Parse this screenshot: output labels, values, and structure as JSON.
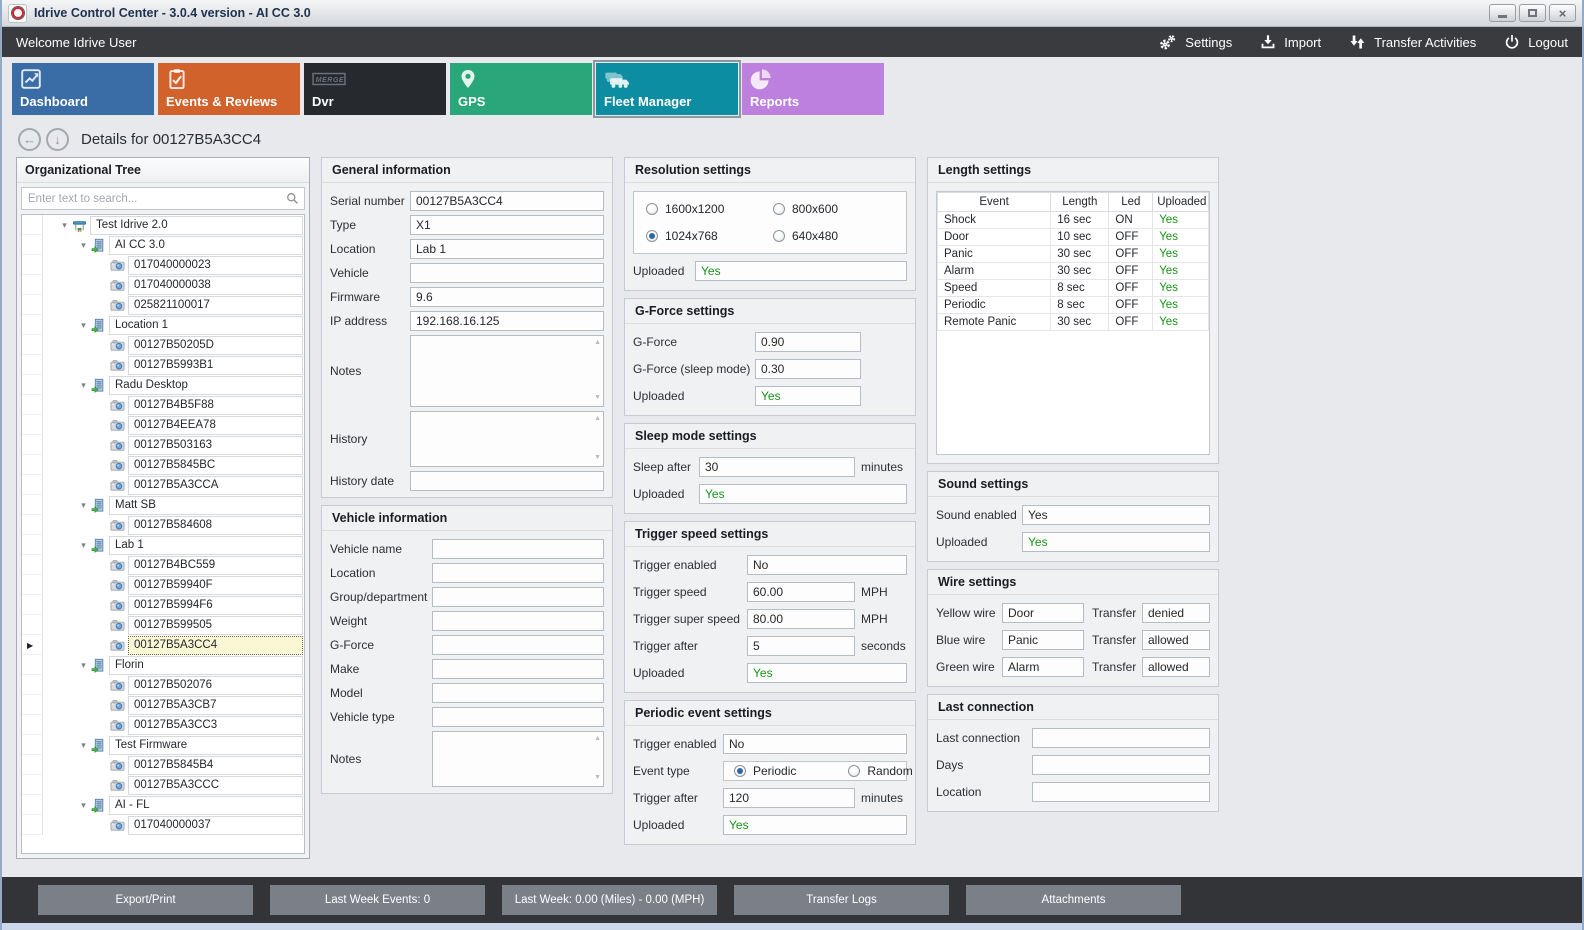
{
  "window": {
    "title": "Idrive Control Center - 3.0.4 version - AI CC 3.0"
  },
  "toolbar": {
    "welcome": "Welcome Idrive User",
    "actions": [
      {
        "label": "Settings",
        "icon": "gears"
      },
      {
        "label": "Import",
        "icon": "import"
      },
      {
        "label": "Transfer Activities",
        "icon": "transfer"
      },
      {
        "label": "Logout",
        "icon": "power"
      }
    ]
  },
  "tabs": [
    {
      "label": "Dashboard",
      "icon": "chart",
      "color": "#3a6ca6",
      "selected": false
    },
    {
      "label": "Events & Reviews",
      "icon": "clipboard",
      "color": "#d2622c",
      "selected": false
    },
    {
      "label": "Dvr",
      "icon": "merge",
      "color": "#26292e",
      "selected": false
    },
    {
      "label": "GPS",
      "icon": "pin",
      "color": "#2aa77a",
      "selected": false
    },
    {
      "label": "Fleet Manager",
      "icon": "fleet",
      "color": "#0d8da1",
      "selected": true
    },
    {
      "label": "Reports",
      "icon": "pie",
      "color": "#bd80de",
      "selected": false
    }
  ],
  "details_header": {
    "title": "Details for 00127B5A3CC4",
    "back_icon": "←",
    "down_icon": "↓"
  },
  "sidebar": {
    "title": "Organizational Tree",
    "search_placeholder": "Enter text to search...",
    "tree": [
      {
        "label": "Test Idrive 2.0",
        "icon": "site",
        "level": 0,
        "expanded": true
      },
      {
        "label": "AI CC 3.0",
        "icon": "org",
        "level": 1,
        "expanded": true
      },
      {
        "label": "017040000023",
        "icon": "device",
        "level": 2,
        "leaf": true
      },
      {
        "label": "017040000038",
        "icon": "device",
        "level": 2,
        "leaf": true
      },
      {
        "label": "025821100017",
        "icon": "device",
        "level": 2,
        "leaf": true
      },
      {
        "label": "Location 1",
        "icon": "org",
        "level": 1,
        "expanded": true
      },
      {
        "label": "00127B50205D",
        "icon": "device",
        "level": 2,
        "leaf": true
      },
      {
        "label": "00127B5993B1",
        "icon": "device",
        "level": 2,
        "leaf": true
      },
      {
        "label": "Radu Desktop",
        "icon": "org",
        "level": 1,
        "expanded": true
      },
      {
        "label": "00127B4B5F88",
        "icon": "device",
        "level": 2,
        "leaf": true
      },
      {
        "label": "00127B4EEA78",
        "icon": "device",
        "level": 2,
        "leaf": true
      },
      {
        "label": "00127B503163",
        "icon": "device",
        "level": 2,
        "leaf": true
      },
      {
        "label": "00127B5845BC",
        "icon": "device",
        "level": 2,
        "leaf": true
      },
      {
        "label": "00127B5A3CCA",
        "icon": "device",
        "level": 2,
        "leaf": true
      },
      {
        "label": "Matt SB",
        "icon": "org",
        "level": 1,
        "expanded": true
      },
      {
        "label": "00127B584608",
        "icon": "device",
        "level": 2,
        "leaf": true
      },
      {
        "label": "Lab 1",
        "icon": "org",
        "level": 1,
        "expanded": true
      },
      {
        "label": "00127B4BC559",
        "icon": "device",
        "level": 2,
        "leaf": true
      },
      {
        "label": "00127B59940F",
        "icon": "device",
        "level": 2,
        "leaf": true
      },
      {
        "label": "00127B5994F6",
        "icon": "device",
        "level": 2,
        "leaf": true
      },
      {
        "label": "00127B599505",
        "icon": "device",
        "level": 2,
        "leaf": true
      },
      {
        "label": "00127B5A3CC4",
        "icon": "device",
        "level": 2,
        "leaf": true,
        "selected": true
      },
      {
        "label": "Florin",
        "icon": "org",
        "level": 1,
        "expanded": true
      },
      {
        "label": "00127B502076",
        "icon": "device",
        "level": 2,
        "leaf": true
      },
      {
        "label": "00127B5A3CB7",
        "icon": "device",
        "level": 2,
        "leaf": true
      },
      {
        "label": "00127B5A3CC3",
        "icon": "device",
        "level": 2,
        "leaf": true
      },
      {
        "label": "Test Firmware",
        "icon": "org",
        "level": 1,
        "expanded": true
      },
      {
        "label": "00127B5845B4",
        "icon": "device",
        "level": 2,
        "leaf": true
      },
      {
        "label": "00127B5A3CCC",
        "icon": "device",
        "level": 2,
        "leaf": true
      },
      {
        "label": "AI - FL",
        "icon": "org",
        "level": 1,
        "expanded": true
      },
      {
        "label": "017040000037",
        "icon": "device",
        "level": 2,
        "leaf": true
      }
    ]
  },
  "groups": {
    "general": {
      "title": "General information",
      "fields": {
        "serial": {
          "label": "Serial number",
          "value": "00127B5A3CC4"
        },
        "type": {
          "label": "Type",
          "value": "X1"
        },
        "location": {
          "label": "Location",
          "value": "Lab 1"
        },
        "vehicle": {
          "label": "Vehicle",
          "value": ""
        },
        "firmware": {
          "label": "Firmware",
          "value": "9.6"
        },
        "ip": {
          "label": "IP address",
          "value": "192.168.16.125"
        },
        "notes": {
          "label": "Notes",
          "value": ""
        },
        "history": {
          "label": "History",
          "value": ""
        },
        "history_date": {
          "label": "History date",
          "value": ""
        }
      }
    },
    "vehicle": {
      "title": "Vehicle information",
      "fields": {
        "name": {
          "label": "Vehicle name",
          "value": ""
        },
        "location": {
          "label": "Location",
          "value": ""
        },
        "group": {
          "label": "Group/department",
          "value": ""
        },
        "weight": {
          "label": "Weight",
          "value": ""
        },
        "gforce": {
          "label": "G-Force",
          "value": ""
        },
        "make": {
          "label": "Make",
          "value": ""
        },
        "model": {
          "label": "Model",
          "value": ""
        },
        "vtype": {
          "label": "Vehicle type",
          "value": ""
        },
        "notes": {
          "label": "Notes",
          "value": ""
        }
      }
    },
    "resolution": {
      "title": "Resolution settings",
      "options": [
        {
          "label": "1600x1200",
          "selected": false
        },
        {
          "label": "800x600",
          "selected": false
        },
        {
          "label": "1024x768",
          "selected": true
        },
        {
          "label": "640x480",
          "selected": false
        }
      ],
      "uploaded": {
        "label": "Uploaded",
        "value": "Yes"
      }
    },
    "gforce": {
      "title": "G-Force settings",
      "fields": {
        "gforce": {
          "label": "G-Force",
          "value": "0.90"
        },
        "sleep": {
          "label": "G-Force (sleep mode)",
          "value": "0.30"
        },
        "uploaded": {
          "label": "Uploaded",
          "value": "Yes"
        }
      }
    },
    "sleep": {
      "title": "Sleep mode settings",
      "fields": {
        "after": {
          "label": "Sleep after",
          "value": "30",
          "unit": "minutes"
        },
        "uploaded": {
          "label": "Uploaded",
          "value": "Yes"
        }
      }
    },
    "trigger": {
      "title": "Trigger speed settings",
      "fields": {
        "enabled": {
          "label": "Trigger enabled",
          "value": "No"
        },
        "speed": {
          "label": "Trigger speed",
          "value": "60.00",
          "unit": "MPH"
        },
        "super": {
          "label": "Trigger super speed",
          "value": "80.00",
          "unit": "MPH"
        },
        "after": {
          "label": "Trigger after",
          "value": "5",
          "unit": "seconds"
        },
        "uploaded": {
          "label": "Uploaded",
          "value": "Yes"
        }
      }
    },
    "periodic": {
      "title": "Periodic event settings",
      "event_type_label": "Event type",
      "event_options": [
        {
          "label": "Periodic",
          "selected": true
        },
        {
          "label": "Random",
          "selected": false
        }
      ],
      "fields": {
        "enabled": {
          "label": "Trigger enabled",
          "value": "No"
        },
        "after": {
          "label": "Trigger after",
          "value": "120",
          "unit": "minutes"
        },
        "uploaded": {
          "label": "Uploaded",
          "value": "Yes"
        }
      }
    },
    "length": {
      "title": "Length settings",
      "headers": [
        "Event",
        "Length",
        "Led",
        "Uploaded"
      ],
      "rows": [
        [
          "Shock",
          "16 sec",
          "ON",
          "Yes"
        ],
        [
          "Door",
          "10 sec",
          "OFF",
          "Yes"
        ],
        [
          "Panic",
          "30 sec",
          "OFF",
          "Yes"
        ],
        [
          "Alarm",
          "30 sec",
          "OFF",
          "Yes"
        ],
        [
          "Speed",
          "8 sec",
          "OFF",
          "Yes"
        ],
        [
          "Periodic",
          "8 sec",
          "OFF",
          "Yes"
        ],
        [
          "Remote Panic",
          "30 sec",
          "OFF",
          "Yes"
        ]
      ]
    },
    "sound": {
      "title": "Sound settings",
      "fields": {
        "enabled": {
          "label": "Sound enabled",
          "value": "Yes"
        },
        "uploaded": {
          "label": "Uploaded",
          "value": "Yes"
        }
      }
    },
    "wire": {
      "title": "Wire settings",
      "rows": [
        {
          "label": "Yellow wire",
          "value": "Door",
          "transfer_label": "Transfer",
          "transfer": "denied"
        },
        {
          "label": "Blue wire",
          "value": "Panic",
          "transfer_label": "Transfer",
          "transfer": "allowed"
        },
        {
          "label": "Green wire",
          "value": "Alarm",
          "transfer_label": "Transfer",
          "transfer": "allowed"
        }
      ]
    },
    "last": {
      "title": "Last connection",
      "fields": {
        "conn": {
          "label": "Last connection",
          "value": ""
        },
        "days": {
          "label": "Days",
          "value": ""
        },
        "location": {
          "label": "Location",
          "value": ""
        }
      }
    }
  },
  "footer": {
    "buttons": [
      "Export/Print",
      "Last Week Events: 0",
      "Last Week: 0.00 (Miles) - 0.00 (MPH)",
      "Transfer Logs",
      "Attachments"
    ]
  },
  "colors": {
    "uploaded_yes_green": "#169416",
    "footer_button": "#7b7f88",
    "toolbar_dark": "#3a3b3e"
  }
}
